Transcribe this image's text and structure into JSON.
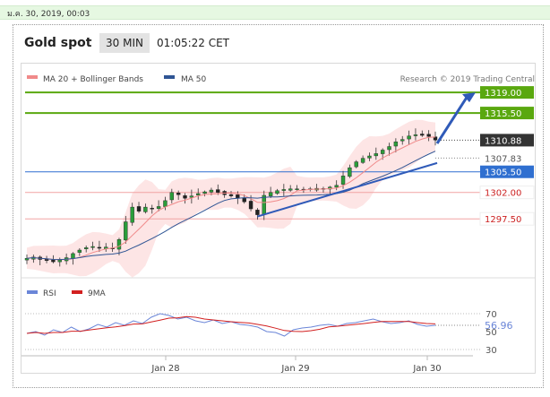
{
  "topbar": {
    "datetime": "ม.ค. 30, 2019, 00:03"
  },
  "header": {
    "title": "Gold spot",
    "timeframe": "30 MIN",
    "time": "01:05:22 CET"
  },
  "legend": {
    "ma20_label": "MA 20 + Bollinger Bands",
    "ma50_label": "MA 50",
    "copyright": "Research © 2019 Trading Central",
    "rsi_label": "RSI",
    "ma9_label": "9MA"
  },
  "colors": {
    "ma20": "#f08a8a",
    "ma50": "#2f5594",
    "bollinger_fill": "#fde0e0",
    "resistance_green": "#5aa80f",
    "pivot_blue": "#2f6fd0",
    "support_red": "#f2a4a4",
    "trend_arrow": "#2f5ab8",
    "rsi": "#6b86d8",
    "rsi_ma": "#d22020"
  },
  "chart_data": [
    {
      "type": "candlestick",
      "x_ticks": [
        "Jan 28",
        "Jan 29",
        "Jan 30"
      ],
      "ylim": [
        1289,
        1321
      ],
      "levels": [
        {
          "label": "1319.00",
          "value": 1319.0,
          "kind": "resistance"
        },
        {
          "label": "1315.50",
          "value": 1315.5,
          "kind": "resistance"
        },
        {
          "label": "1310.88",
          "value": 1310.88,
          "kind": "last_price"
        },
        {
          "label": "1307.83",
          "value": 1307.83,
          "kind": "ma"
        },
        {
          "label": "1305.50",
          "value": 1305.5,
          "kind": "pivot"
        },
        {
          "label": "1302.00",
          "value": 1302.0,
          "kind": "support"
        },
        {
          "label": "1297.50",
          "value": 1297.5,
          "kind": "support"
        }
      ],
      "close_path": [
        1290.8,
        1291.0,
        1290.6,
        1290.4,
        1290.2,
        1290.5,
        1290.9,
        1291.6,
        1292.2,
        1292.6,
        1292.8,
        1292.5,
        1292.7,
        1292.4,
        1294.0,
        1297.0,
        1299.5,
        1298.8,
        1299.5,
        1299.2,
        1299.6,
        1300.6,
        1302.0,
        1301.6,
        1301.0,
        1301.4,
        1301.8,
        1302.1,
        1302.4,
        1302.0,
        1301.6,
        1301.4,
        1301.0,
        1300.4,
        1299.2,
        1298.2,
        1301.5,
        1302.0,
        1302.3,
        1302.5,
        1302.6,
        1302.6,
        1302.4,
        1302.6,
        1302.7,
        1302.6,
        1302.9,
        1303.2,
        1304.8,
        1306.2,
        1307.2,
        1307.8,
        1308.2,
        1308.6,
        1309.2,
        1309.8,
        1310.6,
        1311.0,
        1311.6,
        1311.8,
        1311.7,
        1311.5,
        1310.9
      ],
      "series": [
        {
          "name": "MA 20 + Bollinger Bands"
        },
        {
          "name": "MA 50"
        }
      ],
      "annotations": {
        "trendline_support": true,
        "projection_arrow_target": 1319.0
      }
    },
    {
      "type": "line",
      "series": [
        {
          "name": "RSI",
          "last_value_label": "56.96",
          "values": [
            48,
            50,
            46,
            52,
            49,
            55,
            50,
            53,
            58,
            55,
            60,
            57,
            62,
            59,
            66,
            70,
            68,
            64,
            66,
            62,
            60,
            63,
            59,
            61,
            58,
            57,
            55,
            50,
            49,
            45,
            52,
            54,
            55,
            57,
            58,
            56,
            59,
            60,
            62,
            64,
            61,
            59,
            60,
            62,
            58,
            56,
            57
          ]
        },
        {
          "name": "9MA"
        }
      ],
      "ylim": [
        25,
        75
      ],
      "y_ticks": [
        "70",
        "50",
        "30"
      ]
    }
  ]
}
